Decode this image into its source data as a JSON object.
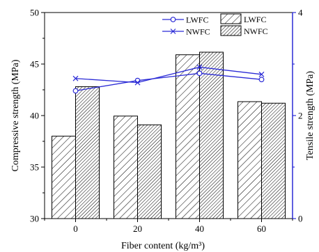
{
  "chart_data": {
    "type": "bar",
    "title": "",
    "xlabel": "Fiber content (kg/m³)",
    "ylabel": "Compressive strength (MPa)",
    "y2label": "Tensile strength (MPa)",
    "categories": [
      "0",
      "20",
      "40",
      "60"
    ],
    "ylim": [
      30,
      50
    ],
    "yticks": [
      30,
      35,
      40,
      45,
      50
    ],
    "y2lim": [
      0,
      4
    ],
    "y2ticks": [
      0,
      2,
      4
    ],
    "series": [
      {
        "name": "LWFC",
        "kind": "bar",
        "axis": "left",
        "values": [
          38.0,
          39.95,
          45.9,
          41.35
        ]
      },
      {
        "name": "NWFC",
        "kind": "bar",
        "axis": "left",
        "values": [
          42.8,
          39.1,
          46.15,
          41.2
        ]
      },
      {
        "name": "LWFC",
        "kind": "line",
        "axis": "right",
        "marker": "circle",
        "values": [
          2.48,
          2.68,
          2.82,
          2.7
        ]
      },
      {
        "name": "NWFC",
        "kind": "line",
        "axis": "right",
        "marker": "x",
        "values": [
          2.72,
          2.64,
          2.94,
          2.8
        ]
      }
    ],
    "line_color": "#2b2bd6",
    "right_axis_color": "#2b2bd6",
    "legend_position": "top"
  }
}
